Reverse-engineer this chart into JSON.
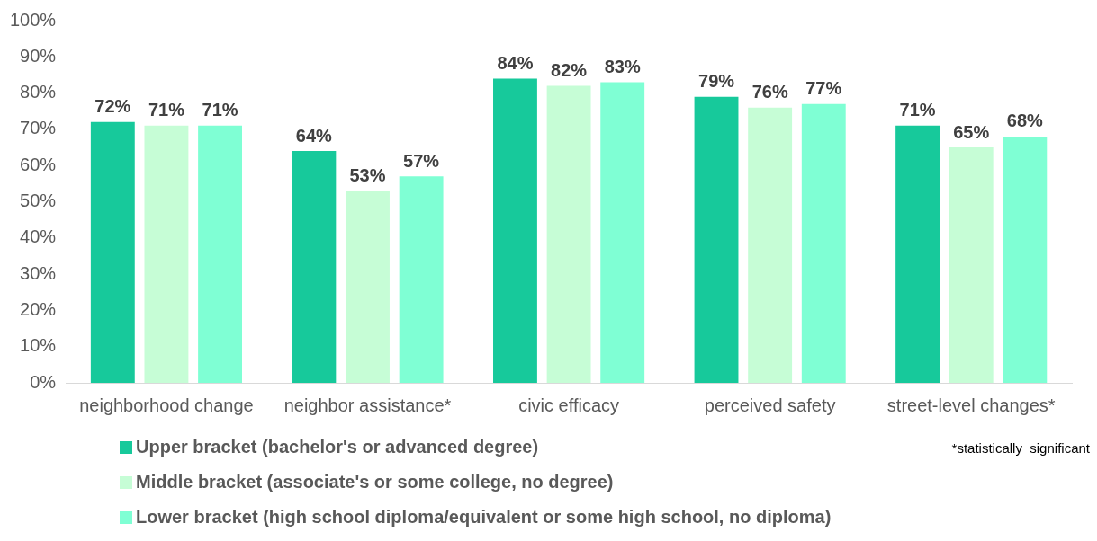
{
  "chart_data": {
    "type": "bar",
    "categories": [
      "neighborhood change",
      "neighbor assistance*",
      "civic efficacy",
      "perceived safety",
      "street-level changes*"
    ],
    "series": [
      {
        "name": "Upper bracket (bachelor's or advanced degree)",
        "color": "#17c99b",
        "values": [
          72,
          64,
          84,
          79,
          71
        ],
        "value_labels": [
          "72%",
          "64%",
          "84%",
          "79%",
          "71%"
        ]
      },
      {
        "name": "Middle bracket (associate's or some college, no degree)",
        "color": "#c6fdd6",
        "values": [
          71,
          53,
          82,
          76,
          65
        ],
        "value_labels": [
          "71%",
          "53%",
          "82%",
          "76%",
          "65%"
        ]
      },
      {
        "name": "Lower bracket (high school diploma/equivalent or some high school, no diploma)",
        "color": "#7fffd4",
        "values": [
          71,
          57,
          83,
          77,
          68
        ],
        "value_labels": [
          "71%",
          "57%",
          "83%",
          "77%",
          "68%"
        ]
      }
    ],
    "ylim": [
      0,
      100
    ],
    "yticks": [
      {
        "value": 0,
        "label": "0%"
      },
      {
        "value": 10,
        "label": "10%"
      },
      {
        "value": 20,
        "label": "20%"
      },
      {
        "value": 30,
        "label": "30%"
      },
      {
        "value": 40,
        "label": "40%"
      },
      {
        "value": 50,
        "label": "50%"
      },
      {
        "value": 60,
        "label": "60%"
      },
      {
        "value": 70,
        "label": "70%"
      },
      {
        "value": 80,
        "label": "80%"
      },
      {
        "value": 90,
        "label": "90%"
      },
      {
        "value": 100,
        "label": "100%"
      }
    ],
    "grid": false,
    "legend": "bottom left",
    "annotations": [
      "*statistically  significant"
    ]
  }
}
